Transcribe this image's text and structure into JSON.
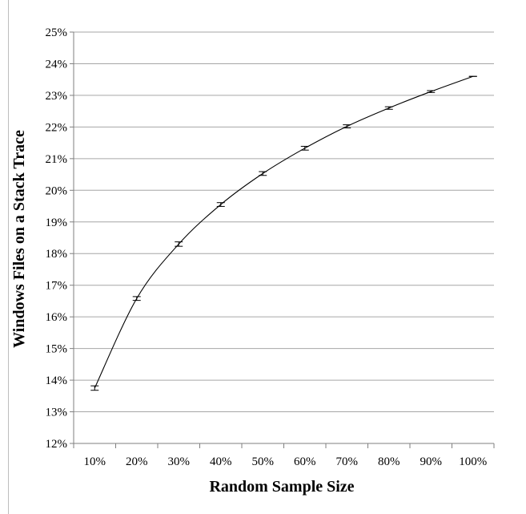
{
  "chart_data": {
    "type": "line",
    "title": "",
    "xlabel": "Random Sample Size",
    "ylabel": "Windows Files on a Stack Trace",
    "categories": [
      "10%",
      "20%",
      "30%",
      "40%",
      "50%",
      "60%",
      "70%",
      "80%",
      "90%",
      "100%"
    ],
    "y_ticks": [
      "12%",
      "13%",
      "14%",
      "15%",
      "16%",
      "17%",
      "18%",
      "19%",
      "20%",
      "21%",
      "22%",
      "23%",
      "24%",
      "25%"
    ],
    "ylim": [
      12,
      25
    ],
    "grid": true,
    "series": [
      {
        "values": [
          13.75,
          16.58,
          18.3,
          19.55,
          20.53,
          21.33,
          22.02,
          22.6,
          23.12,
          23.6
        ],
        "error": [
          0.07,
          0.06,
          0.07,
          0.06,
          0.06,
          0.06,
          0.05,
          0.04,
          0.03,
          0.0
        ]
      }
    ]
  }
}
